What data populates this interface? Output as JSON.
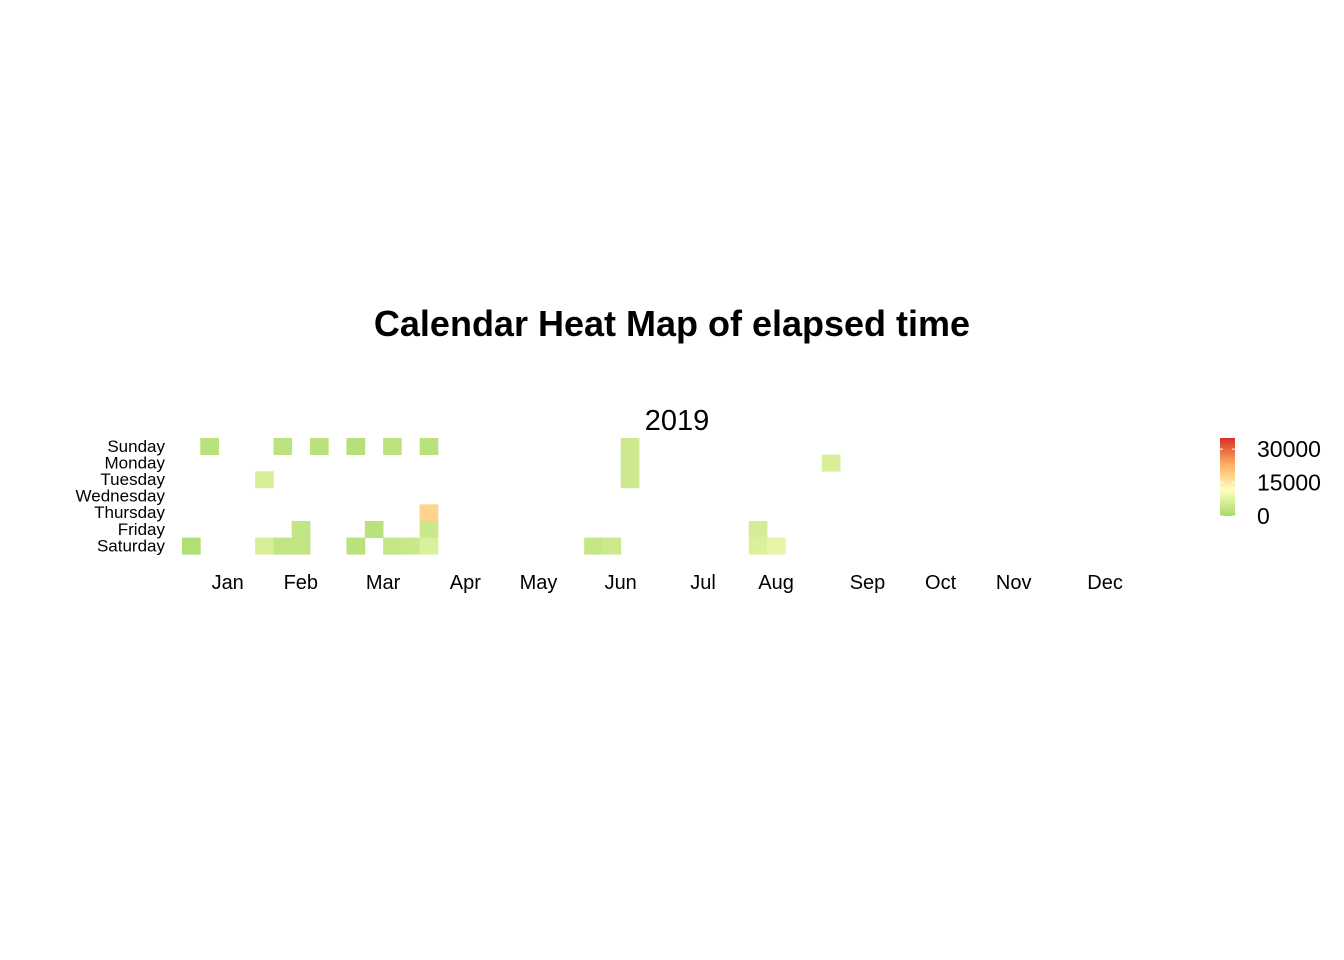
{
  "chart_data": {
    "type": "heatmap",
    "title": "Calendar Heat Map of elapsed time",
    "facet_label": "2019",
    "year": 2019,
    "days": [
      "Sunday",
      "Monday",
      "Tuesday",
      "Wednesday",
      "Thursday",
      "Friday",
      "Saturday"
    ],
    "months": [
      "Jan",
      "Feb",
      "Mar",
      "Apr",
      "May",
      "Jun",
      "Jul",
      "Aug",
      "Sep",
      "Oct",
      "Nov",
      "Dec"
    ],
    "legend": {
      "ticks": [
        0,
        15000,
        30000
      ],
      "tick_labels": [
        "0",
        "15000",
        "30000"
      ],
      "min": 0,
      "max": 35000,
      "colors": [
        "#a6d96a",
        "#ffffbf",
        "#fdae61",
        "#d73027"
      ]
    },
    "cells": [
      {
        "date": "2019-01-05",
        "day": "Saturday",
        "value": 1500
      },
      {
        "date": "2019-01-06",
        "day": "Sunday",
        "value": 2500
      },
      {
        "date": "2019-01-29",
        "day": "Tuesday",
        "value": 6500
      },
      {
        "date": "2019-02-02",
        "day": "Saturday",
        "value": 6500
      },
      {
        "date": "2019-02-03",
        "day": "Sunday",
        "value": 3000
      },
      {
        "date": "2019-02-09",
        "day": "Saturday",
        "value": 3500
      },
      {
        "date": "2019-02-15",
        "day": "Friday",
        "value": 3500
      },
      {
        "date": "2019-02-16",
        "day": "Saturday",
        "value": 3500
      },
      {
        "date": "2019-02-17",
        "day": "Sunday",
        "value": 2500
      },
      {
        "date": "2019-03-03",
        "day": "Sunday",
        "value": 2000
      },
      {
        "date": "2019-03-09",
        "day": "Saturday",
        "value": 2500
      },
      {
        "date": "2019-03-15",
        "day": "Friday",
        "value": 2500
      },
      {
        "date": "2019-03-17",
        "day": "Sunday",
        "value": 3000
      },
      {
        "date": "2019-03-23",
        "day": "Saturday",
        "value": 4000
      },
      {
        "date": "2019-03-30",
        "day": "Saturday",
        "value": 4500
      },
      {
        "date": "2019-03-31",
        "day": "Sunday",
        "value": 2500
      },
      {
        "date": "2019-04-04",
        "day": "Thursday",
        "value": 18000
      },
      {
        "date": "2019-04-05",
        "day": "Friday",
        "value": 4500
      },
      {
        "date": "2019-04-06",
        "day": "Saturday",
        "value": 7000
      },
      {
        "date": "2019-06-08",
        "day": "Saturday",
        "value": 4000
      },
      {
        "date": "2019-06-15",
        "day": "Saturday",
        "value": 5000
      },
      {
        "date": "2019-06-16",
        "day": "Sunday",
        "value": 5000
      },
      {
        "date": "2019-06-17",
        "day": "Monday",
        "value": 5000
      },
      {
        "date": "2019-06-18",
        "day": "Tuesday",
        "value": 5000
      },
      {
        "date": "2019-08-09",
        "day": "Friday",
        "value": 6000
      },
      {
        "date": "2019-08-10",
        "day": "Saturday",
        "value": 7000
      },
      {
        "date": "2019-08-17",
        "day": "Saturday",
        "value": 8500
      },
      {
        "date": "2019-09-02",
        "day": "Monday",
        "value": 6500
      }
    ]
  }
}
